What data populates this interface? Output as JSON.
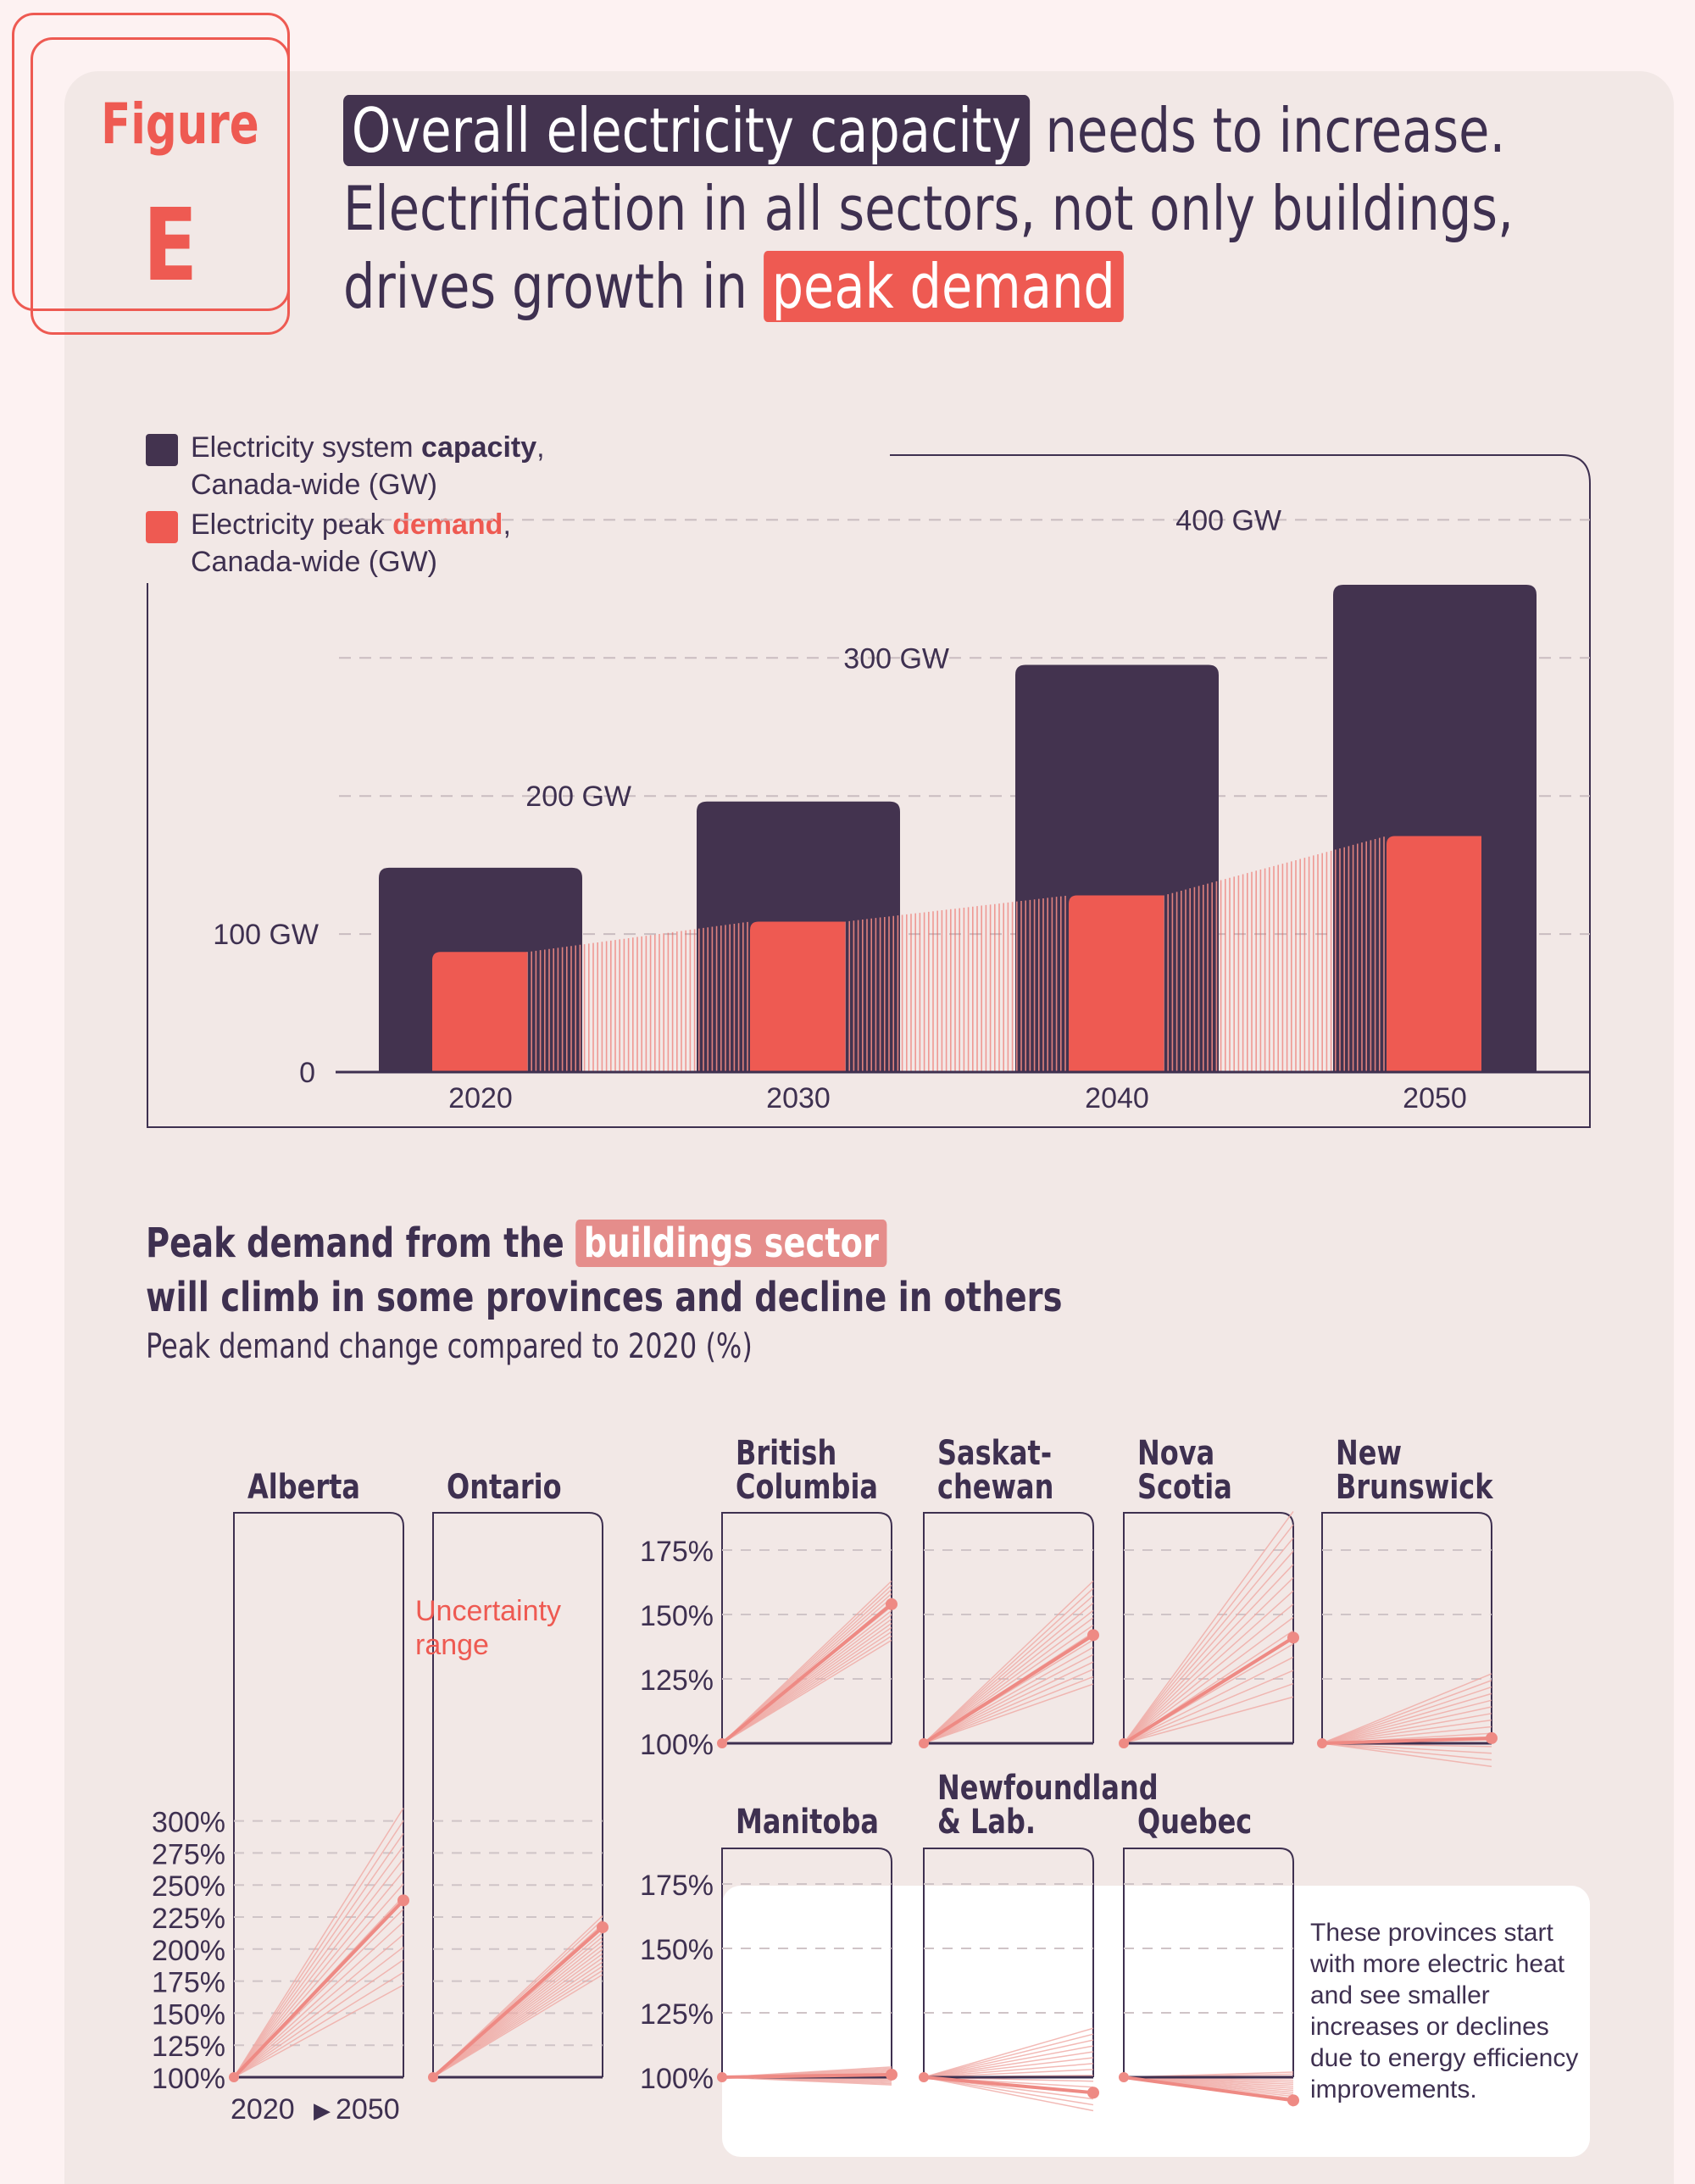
{
  "figure": {
    "word": "Figure",
    "letter": "E"
  },
  "title": {
    "highlight_capacity": "Overall electricity capacity",
    "rest_line1": " needs to increase.",
    "line2": "Electrification in all sectors, not only buildings,",
    "line3_prefix": "drives growth in ",
    "highlight_peak": "peak demand"
  },
  "legend": {
    "capacity": {
      "pre": "Electricity system ",
      "bold": "capacity",
      "post": ",",
      "line2": "Canada-wide (GW)",
      "color": "#43334f"
    },
    "demand": {
      "pre": "Electricity peak ",
      "bold": "demand",
      "post": ",",
      "line2": "Canada-wide (GW)",
      "color": "#ee5a52"
    }
  },
  "chart_data": [
    {
      "type": "bar",
      "categories": [
        "2020",
        "2030",
        "2040",
        "2050"
      ],
      "series": [
        {
          "name": "Electricity system capacity, Canada-wide (GW)",
          "values": [
            148,
            196,
            295,
            353
          ],
          "color": "#43334f"
        },
        {
          "name": "Electricity peak demand, Canada-wide (GW)",
          "values": [
            87,
            109,
            128,
            171
          ],
          "color": "#ee5a52"
        }
      ],
      "y_ticks": [
        {
          "value": 0,
          "label": "0"
        },
        {
          "value": 100,
          "label": "100 GW"
        },
        {
          "value": 200,
          "label": "200 GW"
        },
        {
          "value": 300,
          "label": "300 GW"
        },
        {
          "value": 400,
          "label": "400 GW"
        }
      ],
      "ylim": [
        0,
        400
      ],
      "grid": true
    },
    {
      "type": "line",
      "title_parts": {
        "pre": "Peak demand from the ",
        "highlight": "buildings sector",
        "line2": "will climb in some provinces and decline in others"
      },
      "subtitle": "Peak demand change compared to 2020 (%)",
      "x_labels": {
        "start": "2020",
        "end": "2050",
        "arrow": "▶"
      },
      "annotation": "Uncertainty range",
      "y_ticks_large": [
        "100%",
        "125%",
        "150%",
        "175%",
        "200%",
        "225%",
        "250%",
        "275%",
        "300%"
      ],
      "y_ticks_small": [
        "100%",
        "125%",
        "150%",
        "175%"
      ],
      "provinces": [
        {
          "name_lines": [
            "Alberta"
          ],
          "start": 100,
          "end": 238,
          "range": [
            172,
            310
          ]
        },
        {
          "name_lines": [
            "Ontario"
          ],
          "start": 100,
          "end": 217,
          "range": [
            180,
            226
          ]
        },
        {
          "name_lines": [
            "British",
            "Columbia"
          ],
          "start": 100,
          "end": 154,
          "range": [
            140,
            163
          ]
        },
        {
          "name_lines": [
            "Saskat-",
            "chewan"
          ],
          "start": 100,
          "end": 142,
          "range": [
            123,
            163
          ]
        },
        {
          "name_lines": [
            "Nova",
            "Scotia"
          ],
          "start": 100,
          "end": 141,
          "range": [
            118,
            190
          ]
        },
        {
          "name_lines": [
            "New",
            "Brunswick"
          ],
          "start": 100,
          "end": 102,
          "range": [
            91,
            127
          ]
        },
        {
          "name_lines": [
            "Manitoba"
          ],
          "start": 100,
          "end": 101,
          "range": [
            97,
            104
          ]
        },
        {
          "name_lines": [
            "Newfoundland",
            "& Lab."
          ],
          "start": 100,
          "end": 94,
          "range": [
            87,
            119
          ]
        },
        {
          "name_lines": [
            "Quebec"
          ],
          "start": 100,
          "end": 91,
          "range": [
            91,
            102
          ]
        }
      ]
    }
  ],
  "note": "These provinces start with more electric heat and see smaller increases or declines due to energy efficiency improvements.",
  "colors": {
    "dark": "#43334f",
    "red": "#ee5a52",
    "pink": "#e58d8b",
    "light_line": "#f0b4b0"
  }
}
